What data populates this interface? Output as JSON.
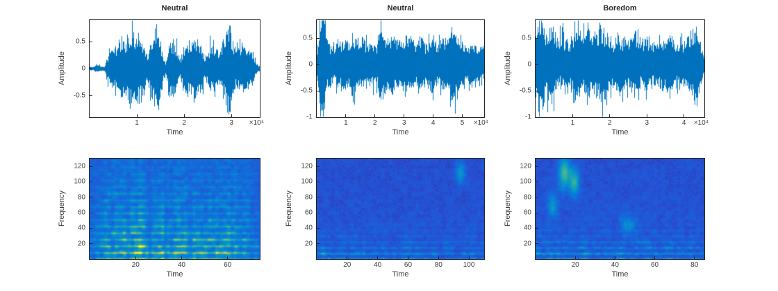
{
  "figure": {
    "background": "#ffffff",
    "waveform_color": "#0072BD",
    "axes_color": "#262626",
    "label_color": "#404040"
  },
  "chart_data": [
    {
      "type": "line",
      "subtype": "audio-waveform",
      "title": "Neutral",
      "xlabel": "Time",
      "ylabel": "Amplitude",
      "x_exponent": "×10⁴",
      "xlim": [
        0,
        36000
      ],
      "ylim": [
        -0.9,
        0.9
      ],
      "xticks": [
        10000,
        20000,
        30000
      ],
      "xtick_labels": [
        "1",
        "2",
        "3"
      ],
      "yticks": [
        -0.5,
        0,
        0.5
      ],
      "ytick_labels": [
        "-0.5",
        "0",
        "0.5"
      ],
      "line_color": "#0072BD",
      "amplitude_envelope": [
        0.03,
        0.04,
        0.1,
        0.05,
        0.04,
        0.3,
        0.4,
        0.35,
        0.55,
        0.6,
        0.45,
        0.7,
        0.75,
        0.65,
        0.5,
        0.45,
        0.3,
        0.6,
        0.85,
        0.8,
        0.35,
        0.12,
        0.55,
        0.62,
        0.55,
        0.2,
        0.5,
        0.55,
        0.5,
        0.58,
        0.62,
        0.55,
        0.18,
        0.45,
        0.52,
        0.48,
        0.3,
        0.7,
        0.9,
        0.85,
        0.5,
        0.4,
        0.45,
        0.38,
        0.35,
        0.4,
        0.15,
        0.06
      ]
    },
    {
      "type": "line",
      "subtype": "audio-waveform",
      "title": "Neutral",
      "xlabel": "Time",
      "ylabel": "Amplitude",
      "x_exponent": "×10⁴",
      "xlim": [
        0,
        57500
      ],
      "ylim": [
        -1,
        0.85
      ],
      "xticks": [
        10000,
        20000,
        30000,
        40000,
        50000
      ],
      "xtick_labels": [
        "1",
        "2",
        "3",
        "4",
        "5"
      ],
      "yticks": [
        -1,
        -0.5,
        0,
        0.5
      ],
      "ytick_labels": [
        "-1",
        "-0.5",
        "0",
        "0.5"
      ],
      "line_color": "#0072BD",
      "amplitude_envelope": [
        0.25,
        0.95,
        1.0,
        0.55,
        0.45,
        0.4,
        0.55,
        0.45,
        0.5,
        0.42,
        0.6,
        0.5,
        0.45,
        0.55,
        0.4,
        0.48,
        0.55,
        0.45,
        0.65,
        0.5,
        0.45,
        0.55,
        0.48,
        0.42,
        0.55,
        0.6,
        0.45,
        0.5,
        0.42,
        0.55,
        0.48,
        0.45,
        0.52,
        0.45,
        0.4,
        0.48,
        0.42,
        0.45,
        0.7,
        0.75,
        0.5,
        0.45,
        0.4,
        0.45,
        0.38,
        0.42,
        0.4,
        0.35
      ]
    },
    {
      "type": "line",
      "subtype": "audio-waveform",
      "title": "Boredom",
      "xlabel": "Time",
      "ylabel": "Amplitude",
      "x_exponent": "×10⁴",
      "xlim": [
        0,
        45500
      ],
      "ylim": [
        -1,
        0.85
      ],
      "xticks": [
        10000,
        20000,
        30000,
        40000
      ],
      "xtick_labels": [
        "1",
        "2",
        "3",
        "4"
      ],
      "yticks": [
        -1,
        -0.5,
        0,
        0.5
      ],
      "ytick_labels": [
        "-1",
        "-0.5",
        "0",
        "0.5"
      ],
      "line_color": "#0072BD",
      "amplitude_envelope": [
        0.6,
        0.95,
        0.85,
        0.75,
        0.9,
        0.8,
        0.5,
        0.65,
        0.7,
        0.6,
        0.75,
        0.8,
        0.7,
        0.6,
        0.72,
        0.68,
        0.55,
        0.65,
        0.8,
        0.85,
        0.75,
        0.55,
        0.4,
        0.55,
        0.62,
        0.58,
        0.5,
        0.6,
        0.65,
        0.55,
        0.45,
        0.5,
        0.4,
        0.45,
        0.5,
        0.42,
        0.48,
        0.55,
        0.5,
        0.45,
        0.52,
        0.48,
        0.55,
        0.6,
        0.7,
        0.65,
        0.45,
        0.2
      ]
    },
    {
      "type": "heatmap",
      "subtype": "spectrogram",
      "colormap": "parula",
      "xlabel": "Time",
      "ylabel": "Frequency",
      "xlim": [
        0,
        74
      ],
      "ylim": [
        0,
        130
      ],
      "xticks": [
        20,
        40,
        60
      ],
      "xtick_labels": [
        "20",
        "40",
        "60"
      ],
      "yticks": [
        20,
        40,
        60,
        80,
        100,
        120
      ],
      "ytick_labels": [
        "20",
        "40",
        "60",
        "80",
        "100",
        "120"
      ],
      "base_level": 0.18,
      "speckle": 0.1,
      "band_spacing": 8.5,
      "band_decay": 55,
      "band_strength": 1.1,
      "broad_strength": 0.5,
      "broad_decay": 100,
      "time_envelope": [
        0.25,
        0.3,
        0.55,
        0.85,
        0.75,
        0.9,
        0.8,
        0.55,
        0.9,
        0.95,
        0.7,
        0.45,
        0.85,
        0.9,
        0.65,
        0.55,
        0.8,
        0.85,
        0.7,
        0.75,
        0.65,
        0.55,
        0.75,
        0.7,
        0.8,
        0.95,
        0.9,
        0.65,
        0.7,
        0.65,
        0.45,
        0.25
      ],
      "blobs": []
    },
    {
      "type": "heatmap",
      "subtype": "spectrogram",
      "colormap": "parula",
      "xlabel": "Time",
      "ylabel": "Frequency",
      "xlim": [
        0,
        110
      ],
      "ylim": [
        0,
        130
      ],
      "xticks": [
        20,
        40,
        60,
        80,
        100
      ],
      "xtick_labels": [
        "20",
        "40",
        "60",
        "80",
        "100"
      ],
      "yticks": [
        20,
        40,
        60,
        80,
        100,
        120
      ],
      "ytick_labels": [
        "20",
        "40",
        "60",
        "80",
        "100",
        "120"
      ],
      "base_level": 0.14,
      "speckle": 0.1,
      "band_spacing": 7.5,
      "band_decay": 16,
      "band_strength": 1.0,
      "broad_strength": 0.18,
      "broad_decay": 40,
      "time_envelope": [
        0.35,
        0.95,
        0.75,
        0.55,
        0.6,
        0.65,
        0.55,
        0.6,
        0.62,
        0.55,
        0.5,
        0.6,
        0.55,
        0.65,
        0.6,
        0.55,
        0.6,
        0.65,
        0.55,
        0.6,
        0.55,
        0.5,
        0.6,
        0.55,
        0.65,
        0.6,
        0.55,
        0.5,
        0.55,
        0.6,
        0.5,
        0.4
      ],
      "blobs": [
        {
          "t": 0.86,
          "f": 112,
          "rt": 0.02,
          "rf": 10,
          "a": 0.3
        }
      ]
    },
    {
      "type": "heatmap",
      "subtype": "spectrogram",
      "colormap": "parula",
      "xlabel": "Time",
      "ylabel": "Frequency",
      "xlim": [
        0,
        85
      ],
      "ylim": [
        0,
        130
      ],
      "xticks": [
        20,
        40,
        60,
        80
      ],
      "xtick_labels": [
        "20",
        "40",
        "60",
        "80"
      ],
      "yticks": [
        20,
        40,
        60,
        80,
        100,
        120
      ],
      "ytick_labels": [
        "20",
        "40",
        "60",
        "80",
        "100",
        "120"
      ],
      "base_level": 0.14,
      "speckle": 0.1,
      "band_spacing": 7.5,
      "band_decay": 18,
      "band_strength": 1.05,
      "broad_strength": 0.2,
      "broad_decay": 45,
      "time_envelope": [
        0.75,
        0.85,
        0.7,
        0.8,
        0.75,
        0.6,
        0.7,
        0.75,
        0.65,
        0.7,
        0.6,
        0.55,
        0.65,
        0.6,
        0.55,
        0.6,
        0.65,
        0.7,
        0.6,
        0.65,
        0.7,
        0.65,
        0.6,
        0.65,
        0.7,
        0.65,
        0.6,
        0.65,
        0.6,
        0.65,
        0.55,
        0.35
      ],
      "blobs": [
        {
          "t": 0.17,
          "f": 112,
          "rt": 0.025,
          "rf": 14,
          "a": 0.5
        },
        {
          "t": 0.23,
          "f": 100,
          "rt": 0.02,
          "rf": 12,
          "a": 0.45
        },
        {
          "t": 0.1,
          "f": 70,
          "rt": 0.02,
          "rf": 10,
          "a": 0.3
        },
        {
          "t": 0.55,
          "f": 45,
          "rt": 0.03,
          "rf": 8,
          "a": 0.25
        }
      ]
    }
  ]
}
